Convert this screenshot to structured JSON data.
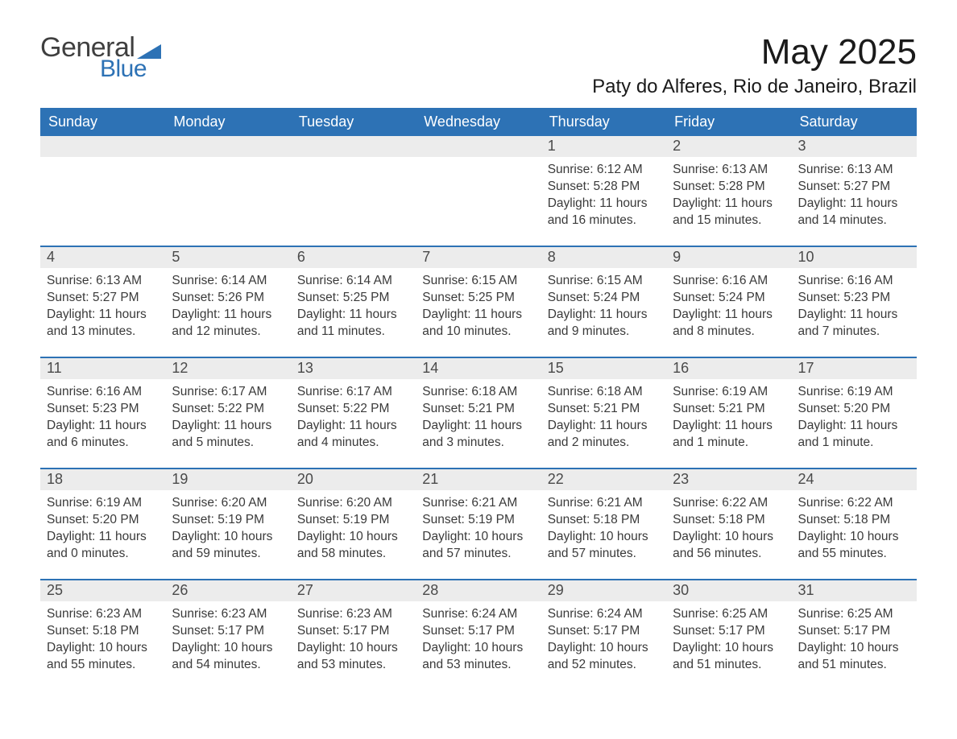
{
  "branding": {
    "word1": "General",
    "word2": "Blue",
    "word1_color": "#3f3f3f",
    "word2_color": "#2d72b5",
    "triangle_color": "#2d72b5"
  },
  "title": "May 2025",
  "location": "Paty do Alferes, Rio de Janeiro, Brazil",
  "colors": {
    "header_bg": "#2d72b5",
    "header_text": "#ffffff",
    "daynum_bg": "#ececec",
    "daynum_text": "#4a4a4a",
    "body_text": "#3a3a3a",
    "row_divider": "#2d72b5",
    "page_bg": "#ffffff"
  },
  "typography": {
    "title_fontsize_pt": 33,
    "location_fontsize_pt": 18,
    "header_fontsize_pt": 14,
    "daynum_fontsize_pt": 14,
    "body_fontsize_pt": 12,
    "font_family": "Arial"
  },
  "layout": {
    "columns": 7,
    "rows": 5,
    "leading_blanks": 4
  },
  "weekdays": [
    "Sunday",
    "Monday",
    "Tuesday",
    "Wednesday",
    "Thursday",
    "Friday",
    "Saturday"
  ],
  "days": [
    {
      "n": 1,
      "sunrise": "6:12 AM",
      "sunset": "5:28 PM",
      "daylight": "11 hours and 16 minutes."
    },
    {
      "n": 2,
      "sunrise": "6:13 AM",
      "sunset": "5:28 PM",
      "daylight": "11 hours and 15 minutes."
    },
    {
      "n": 3,
      "sunrise": "6:13 AM",
      "sunset": "5:27 PM",
      "daylight": "11 hours and 14 minutes."
    },
    {
      "n": 4,
      "sunrise": "6:13 AM",
      "sunset": "5:27 PM",
      "daylight": "11 hours and 13 minutes."
    },
    {
      "n": 5,
      "sunrise": "6:14 AM",
      "sunset": "5:26 PM",
      "daylight": "11 hours and 12 minutes."
    },
    {
      "n": 6,
      "sunrise": "6:14 AM",
      "sunset": "5:25 PM",
      "daylight": "11 hours and 11 minutes."
    },
    {
      "n": 7,
      "sunrise": "6:15 AM",
      "sunset": "5:25 PM",
      "daylight": "11 hours and 10 minutes."
    },
    {
      "n": 8,
      "sunrise": "6:15 AM",
      "sunset": "5:24 PM",
      "daylight": "11 hours and 9 minutes."
    },
    {
      "n": 9,
      "sunrise": "6:16 AM",
      "sunset": "5:24 PM",
      "daylight": "11 hours and 8 minutes."
    },
    {
      "n": 10,
      "sunrise": "6:16 AM",
      "sunset": "5:23 PM",
      "daylight": "11 hours and 7 minutes."
    },
    {
      "n": 11,
      "sunrise": "6:16 AM",
      "sunset": "5:23 PM",
      "daylight": "11 hours and 6 minutes."
    },
    {
      "n": 12,
      "sunrise": "6:17 AM",
      "sunset": "5:22 PM",
      "daylight": "11 hours and 5 minutes."
    },
    {
      "n": 13,
      "sunrise": "6:17 AM",
      "sunset": "5:22 PM",
      "daylight": "11 hours and 4 minutes."
    },
    {
      "n": 14,
      "sunrise": "6:18 AM",
      "sunset": "5:21 PM",
      "daylight": "11 hours and 3 minutes."
    },
    {
      "n": 15,
      "sunrise": "6:18 AM",
      "sunset": "5:21 PM",
      "daylight": "11 hours and 2 minutes."
    },
    {
      "n": 16,
      "sunrise": "6:19 AM",
      "sunset": "5:21 PM",
      "daylight": "11 hours and 1 minute."
    },
    {
      "n": 17,
      "sunrise": "6:19 AM",
      "sunset": "5:20 PM",
      "daylight": "11 hours and 1 minute."
    },
    {
      "n": 18,
      "sunrise": "6:19 AM",
      "sunset": "5:20 PM",
      "daylight": "11 hours and 0 minutes."
    },
    {
      "n": 19,
      "sunrise": "6:20 AM",
      "sunset": "5:19 PM",
      "daylight": "10 hours and 59 minutes."
    },
    {
      "n": 20,
      "sunrise": "6:20 AM",
      "sunset": "5:19 PM",
      "daylight": "10 hours and 58 minutes."
    },
    {
      "n": 21,
      "sunrise": "6:21 AM",
      "sunset": "5:19 PM",
      "daylight": "10 hours and 57 minutes."
    },
    {
      "n": 22,
      "sunrise": "6:21 AM",
      "sunset": "5:18 PM",
      "daylight": "10 hours and 57 minutes."
    },
    {
      "n": 23,
      "sunrise": "6:22 AM",
      "sunset": "5:18 PM",
      "daylight": "10 hours and 56 minutes."
    },
    {
      "n": 24,
      "sunrise": "6:22 AM",
      "sunset": "5:18 PM",
      "daylight": "10 hours and 55 minutes."
    },
    {
      "n": 25,
      "sunrise": "6:23 AM",
      "sunset": "5:18 PM",
      "daylight": "10 hours and 55 minutes."
    },
    {
      "n": 26,
      "sunrise": "6:23 AM",
      "sunset": "5:17 PM",
      "daylight": "10 hours and 54 minutes."
    },
    {
      "n": 27,
      "sunrise": "6:23 AM",
      "sunset": "5:17 PM",
      "daylight": "10 hours and 53 minutes."
    },
    {
      "n": 28,
      "sunrise": "6:24 AM",
      "sunset": "5:17 PM",
      "daylight": "10 hours and 53 minutes."
    },
    {
      "n": 29,
      "sunrise": "6:24 AM",
      "sunset": "5:17 PM",
      "daylight": "10 hours and 52 minutes."
    },
    {
      "n": 30,
      "sunrise": "6:25 AM",
      "sunset": "5:17 PM",
      "daylight": "10 hours and 51 minutes."
    },
    {
      "n": 31,
      "sunrise": "6:25 AM",
      "sunset": "5:17 PM",
      "daylight": "10 hours and 51 minutes."
    }
  ],
  "labels": {
    "sunrise_prefix": "Sunrise: ",
    "sunset_prefix": "Sunset: ",
    "daylight_prefix": "Daylight: "
  }
}
